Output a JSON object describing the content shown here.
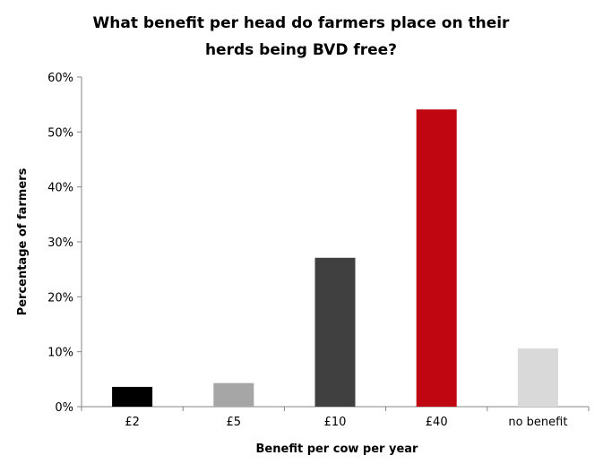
{
  "chart_data": {
    "type": "bar",
    "title_lines": [
      "What benefit per head do farmers place on their",
      "herds being BVD free?"
    ],
    "xlabel": "Benefit per cow per year",
    "ylabel": "Percentage of farmers",
    "categories": [
      "£2",
      "£5",
      "£10",
      "£40",
      "no benefit"
    ],
    "values": [
      3.6,
      4.3,
      27.1,
      54.1,
      10.6
    ],
    "colors": [
      "#000000",
      "#a6a6a6",
      "#404040",
      "#c00610",
      "#d9d9d9"
    ],
    "ylim": [
      0,
      60
    ],
    "yticks": [
      0,
      10,
      20,
      30,
      40,
      50,
      60
    ],
    "ytick_labels": [
      "0%",
      "10%",
      "20%",
      "30%",
      "40%",
      "50%",
      "60%"
    ],
    "grid": false,
    "legend": "none"
  }
}
